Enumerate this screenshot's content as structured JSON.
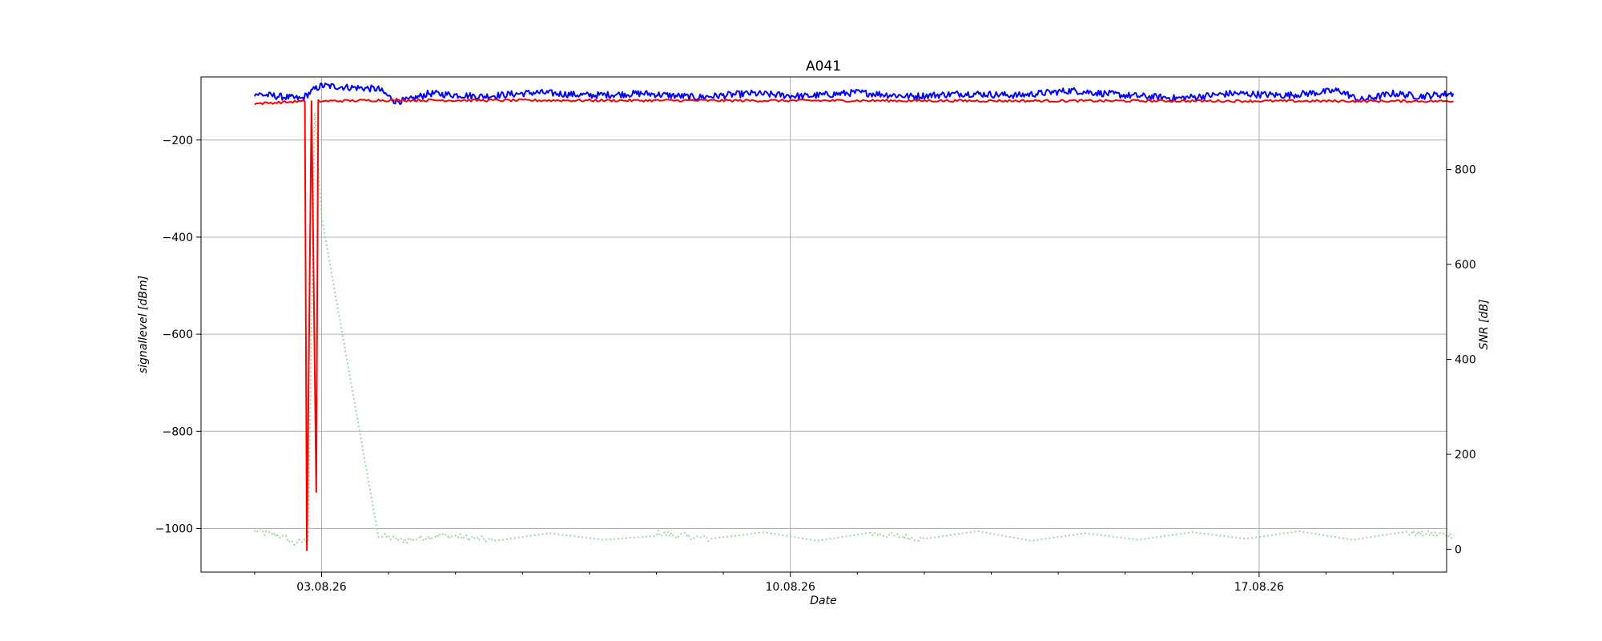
{
  "chart_data": {
    "type": "line",
    "title": "A041",
    "xlabel": "Date",
    "ylabel": "signallevel [dBm]",
    "y2label": "SNR [dB]",
    "x_ticks": [
      "03.08.26",
      "10.08.26",
      "17.08.26"
    ],
    "x_range_days": [
      -1.8,
      16.8
    ],
    "ylim": [
      -1090,
      -70
    ],
    "y_ticks": [
      -200,
      -400,
      -600,
      -800,
      -1000
    ],
    "y_tick_labels": [
      "−200",
      "−400",
      "−600",
      "−800",
      "−1000"
    ],
    "y2lim": [
      -48,
      995
    ],
    "y2_ticks": [
      0,
      200,
      400,
      600,
      800
    ],
    "y2_tick_labels": [
      "0",
      "200",
      "400",
      "600",
      "800"
    ],
    "grid": true,
    "colors": {
      "series1": "#0000ff",
      "series2": "#ff0000",
      "series3": "#a6d6a6"
    },
    "series": [
      {
        "axis": "left",
        "color": "#0000ff",
        "style": "solid",
        "points": [
          [
            -1.0,
            -105
          ],
          [
            -0.3,
            -115
          ],
          [
            -0.1,
            -95
          ],
          [
            0.0,
            -88
          ],
          [
            0.85,
            -95
          ],
          [
            0.9,
            -100
          ],
          [
            1.1,
            -120
          ],
          [
            1.3,
            -118
          ],
          [
            1.6,
            -104
          ],
          [
            2.4,
            -110
          ],
          [
            3.2,
            -102
          ],
          [
            4.0,
            -108
          ],
          [
            4.8,
            -104
          ],
          [
            5.6,
            -112
          ],
          [
            6.4,
            -104
          ],
          [
            7.2,
            -110
          ],
          [
            8.0,
            -102
          ],
          [
            8.8,
            -110
          ],
          [
            9.6,
            -104
          ],
          [
            10.4,
            -108
          ],
          [
            11.2,
            -98
          ],
          [
            12.0,
            -108
          ],
          [
            12.8,
            -114
          ],
          [
            13.6,
            -104
          ],
          [
            14.4,
            -108
          ],
          [
            15.2,
            -98
          ],
          [
            15.5,
            -118
          ],
          [
            16.0,
            -104
          ],
          [
            16.4,
            -110
          ],
          [
            16.9,
            -104
          ]
        ]
      },
      {
        "axis": "left",
        "color": "#ff0000",
        "style": "solid",
        "points": [
          [
            -1.0,
            -125
          ],
          [
            -0.25,
            -120
          ],
          [
            -0.22,
            -1045
          ],
          [
            -0.15,
            -120
          ],
          [
            -0.08,
            -925
          ],
          [
            -0.05,
            -120
          ],
          [
            0.85,
            -118
          ],
          [
            16.9,
            -120
          ]
        ]
      },
      {
        "axis": "right",
        "color": "#a6d6a6",
        "style": "dotted",
        "points": [
          [
            -1.0,
            38
          ],
          [
            -0.6,
            28
          ],
          [
            -0.4,
            12
          ],
          [
            -0.2,
            20
          ],
          [
            -0.1,
            920
          ],
          [
            0.0,
            700
          ],
          [
            0.85,
            30
          ],
          [
            1.2,
            18
          ],
          [
            1.8,
            30
          ],
          [
            2.6,
            18
          ],
          [
            3.4,
            34
          ],
          [
            4.2,
            20
          ],
          [
            5.0,
            34
          ],
          [
            5.8,
            22
          ],
          [
            6.6,
            36
          ],
          [
            7.4,
            18
          ],
          [
            8.2,
            34
          ],
          [
            9.0,
            22
          ],
          [
            9.8,
            38
          ],
          [
            10.6,
            18
          ],
          [
            11.4,
            34
          ],
          [
            12.2,
            20
          ],
          [
            13.0,
            36
          ],
          [
            13.8,
            22
          ],
          [
            14.6,
            38
          ],
          [
            15.4,
            20
          ],
          [
            16.2,
            34
          ],
          [
            16.9,
            30
          ]
        ]
      }
    ]
  }
}
